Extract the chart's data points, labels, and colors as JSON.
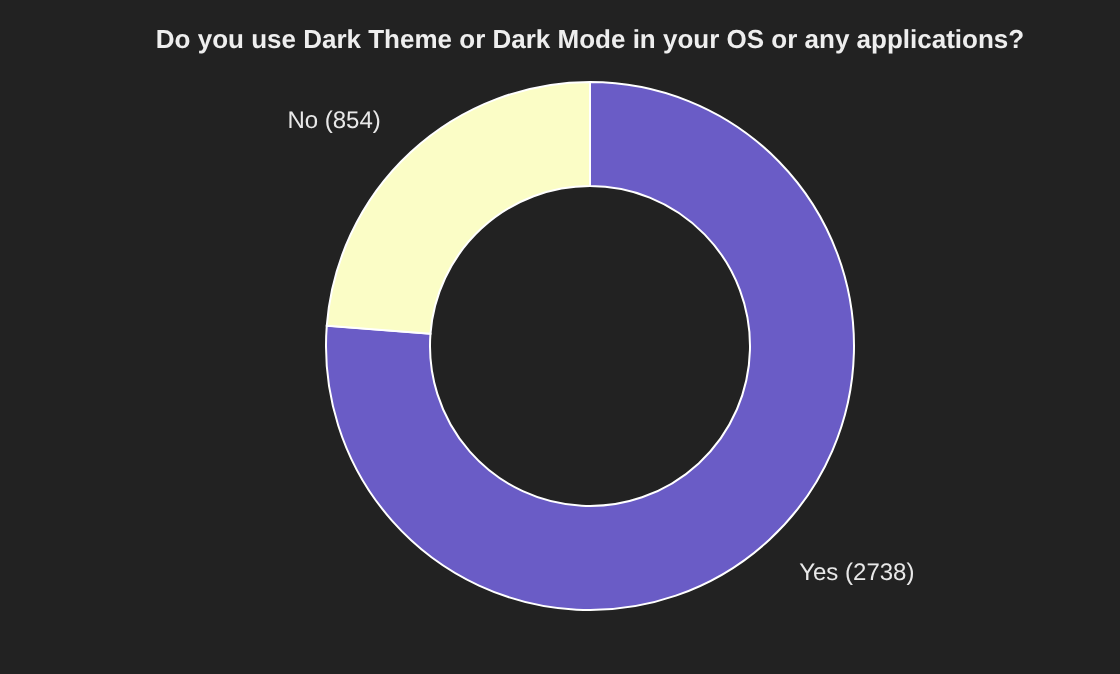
{
  "chart_data": {
    "type": "donut",
    "title": "Do you use Dark Theme or Dark Mode in your OS or any applications?",
    "categories": [
      "Yes (2738)",
      "No (854)"
    ],
    "values": [
      2738,
      854
    ],
    "colors": [
      "#6a5cc6",
      "#fbfdc6"
    ]
  }
}
